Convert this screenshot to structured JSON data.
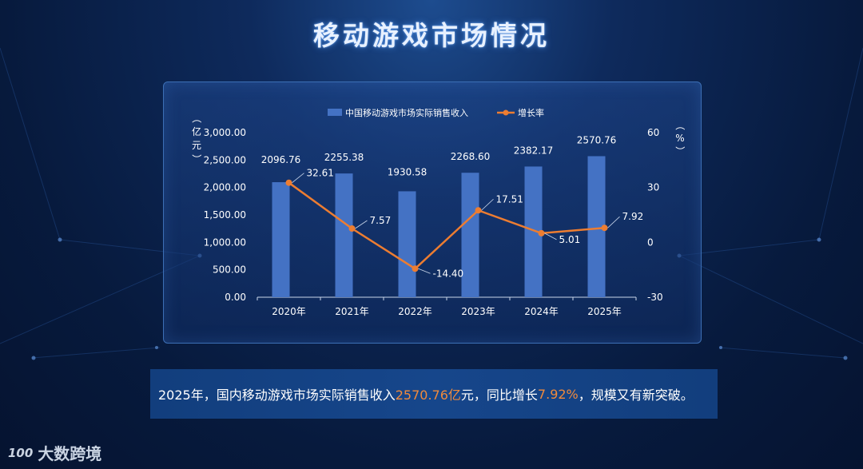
{
  "page": {
    "title": "移动游戏市场情况"
  },
  "chart_data": {
    "type": "bar",
    "categories": [
      "2020年",
      "2021年",
      "2022年",
      "2023年",
      "2024年",
      "2025年"
    ],
    "series": [
      {
        "name": "中国移动游戏市场实际销售收入",
        "type": "bar",
        "axis": "left",
        "color": "#4472c4",
        "values": [
          2096.76,
          2255.38,
          1930.58,
          2268.6,
          2382.17,
          2570.76
        ],
        "labels": [
          "2096.76",
          "2255.38",
          "1930.58",
          "2268.60",
          "2382.17",
          "2570.76"
        ]
      },
      {
        "name": "增长率",
        "type": "line",
        "axis": "right",
        "color": "#ed7d31",
        "values": [
          32.61,
          7.57,
          -14.4,
          17.51,
          5.01,
          7.92
        ],
        "labels": [
          "32.61",
          "7.57",
          "-14.40",
          "17.51",
          "5.01",
          "7.92"
        ]
      }
    ],
    "y_left": {
      "label": "（亿元）",
      "ylim": [
        0,
        3000
      ],
      "ticks": [
        "0.00",
        "500.00",
        "1,000.00",
        "1,500.00",
        "2,000.00",
        "2,500.00",
        "3,000.00"
      ]
    },
    "y_right": {
      "label": "（%）",
      "ylim": [
        -30,
        60
      ],
      "ticks": [
        "-30",
        "0",
        "30",
        "60"
      ]
    },
    "legend": "top-center",
    "grid": false
  },
  "summary": {
    "part1": "2025年，国内移动游戏市场实际销售收入",
    "highlight1": "2570.76亿",
    "part2": "元，同比增长",
    "highlight2": "7.92%",
    "part3": "，规模又有新突破。"
  },
  "logo": {
    "mark": "100",
    "text": "大数跨境"
  },
  "colors": {
    "highlight": "#f08a3c",
    "panel_border": "#3c6fb5"
  }
}
